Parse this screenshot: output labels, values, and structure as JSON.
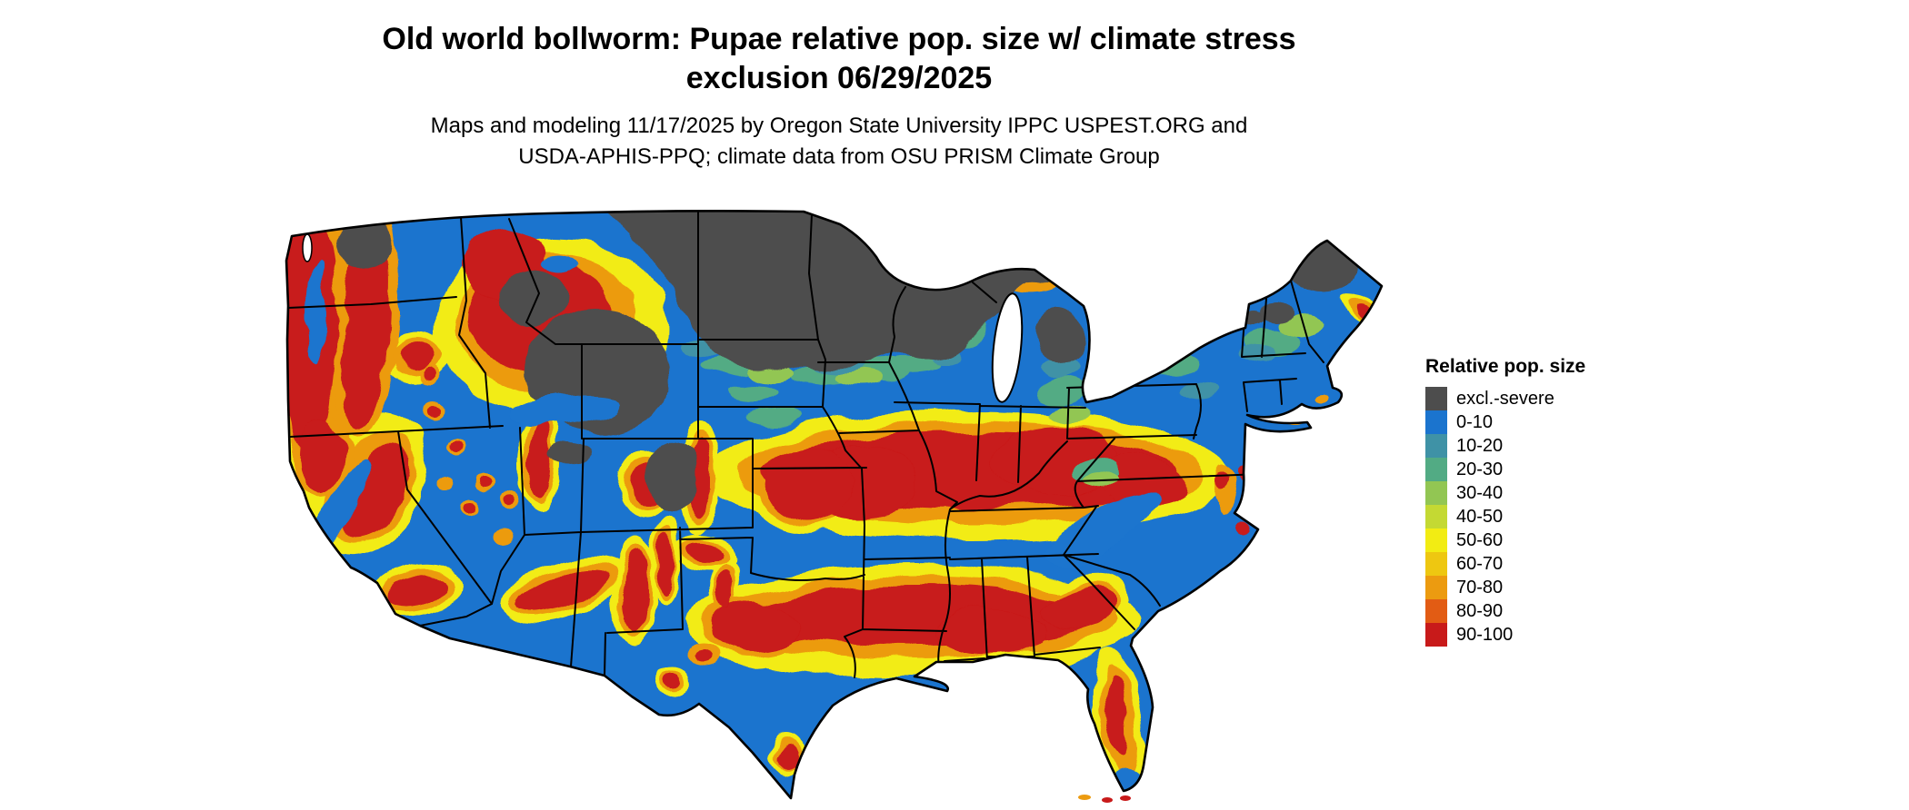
{
  "header": {
    "title_line1": "Old world bollworm: Pupae relative pop. size w/ climate stress",
    "title_line2": "exclusion 06/29/2025",
    "subtitle_line1": "Maps and modeling 11/17/2025 by Oregon State University IPPC USPEST.ORG and",
    "subtitle_line2": "USDA-APHIS-PPQ; climate data from OSU PRISM Climate Group"
  },
  "legend": {
    "title": "Relative pop. size",
    "items": [
      {
        "label": "excl.-severe",
        "color": "#4d4d4d"
      },
      {
        "label": "0-10",
        "color": "#1b74ce"
      },
      {
        "label": "10-20",
        "color": "#3f92a6"
      },
      {
        "label": "20-30",
        "color": "#52ab84"
      },
      {
        "label": "30-40",
        "color": "#92c653"
      },
      {
        "label": "40-50",
        "color": "#c4d933"
      },
      {
        "label": "50-60",
        "color": "#f2ec13"
      },
      {
        "label": "60-70",
        "color": "#eec711"
      },
      {
        "label": "70-80",
        "color": "#ec9b10"
      },
      {
        "label": "80-90",
        "color": "#e25c14"
      },
      {
        "label": "90-100",
        "color": "#c81a1a"
      }
    ]
  },
  "map": {
    "region": "Continental United States",
    "water_color": "#ffffff",
    "border_color": "#000000"
  }
}
